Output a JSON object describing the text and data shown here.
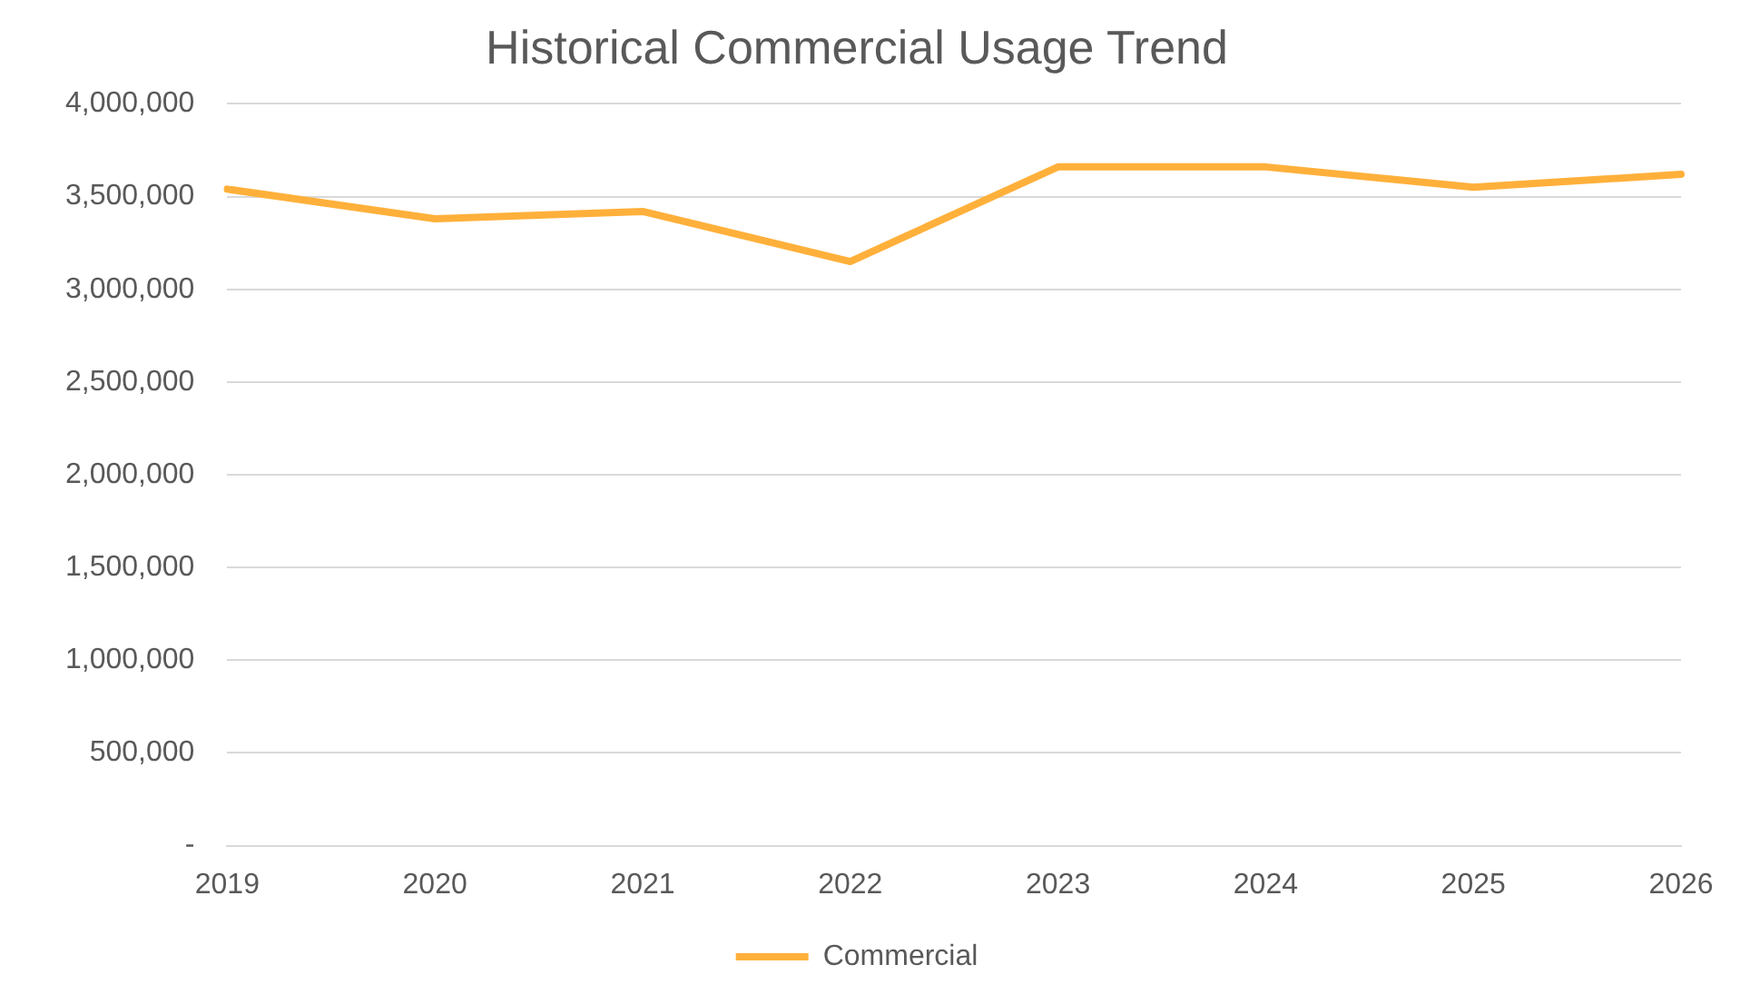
{
  "chart_data": {
    "type": "line",
    "title": "Historical Commercial Usage Trend",
    "categories": [
      "2019",
      "2020",
      "2021",
      "2022",
      "2023",
      "2024",
      "2025",
      "2026"
    ],
    "series": [
      {
        "name": "Commercial",
        "color": "#ffb03b",
        "values": [
          3540000,
          3380000,
          3420000,
          3150000,
          3660000,
          3660000,
          3550000,
          3620000
        ]
      }
    ],
    "ylim": [
      0,
      4000000
    ],
    "yticks": [
      {
        "value": 0,
        "label": "-"
      },
      {
        "value": 500000,
        "label": "500,000"
      },
      {
        "value": 1000000,
        "label": "1,000,000"
      },
      {
        "value": 1500000,
        "label": "1,500,000"
      },
      {
        "value": 2000000,
        "label": "2,000,000"
      },
      {
        "value": 2500000,
        "label": "2,500,000"
      },
      {
        "value": 3000000,
        "label": "3,000,000"
      },
      {
        "value": 3500000,
        "label": "3,500,000"
      },
      {
        "value": 4000000,
        "label": "4,000,000"
      }
    ],
    "grid": "y",
    "legend": "bottom",
    "marker": "none",
    "line_style": "solid"
  }
}
